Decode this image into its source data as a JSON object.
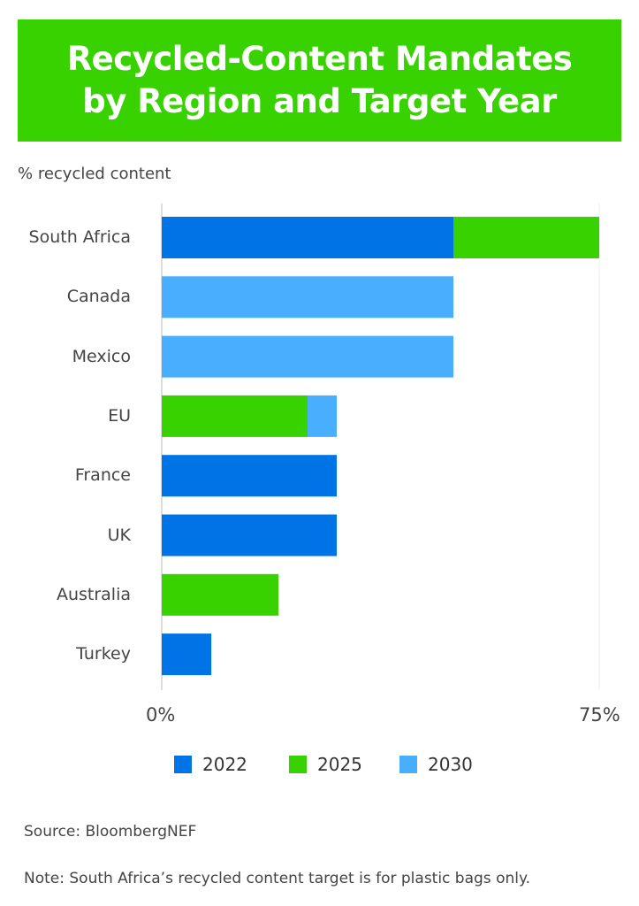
{
  "title_line1": "Recycled-Content Mandates",
  "title_line2": "by Region and Target Year",
  "source": "Source: BloombergNEF",
  "note": "Note: South Africa’s recycled content target is for plastic bags only.",
  "chart_data": {
    "type": "bar",
    "orientation": "horizontal",
    "stacked": true,
    "ylabel": "% recycled content",
    "categories": [
      "South Africa",
      "Canada",
      "Mexico",
      "EU",
      "France",
      "UK",
      "Australia",
      "Turkey"
    ],
    "series": [
      {
        "name": "2022",
        "color": "#0073e6",
        "values": [
          50,
          0,
          0,
          0,
          30,
          30,
          0,
          8.5
        ]
      },
      {
        "name": "2025",
        "color": "#38d200",
        "values": [
          25,
          0,
          0,
          25,
          0,
          0,
          20,
          0
        ]
      },
      {
        "name": "2030",
        "color": "#4aaeff",
        "values": [
          0,
          50,
          50,
          5,
          0,
          0,
          0,
          0
        ]
      }
    ],
    "xlim": [
      0,
      75
    ],
    "tick_labels": [
      "0%",
      "75%"
    ],
    "legend_position": "bottom",
    "grid": false
  }
}
